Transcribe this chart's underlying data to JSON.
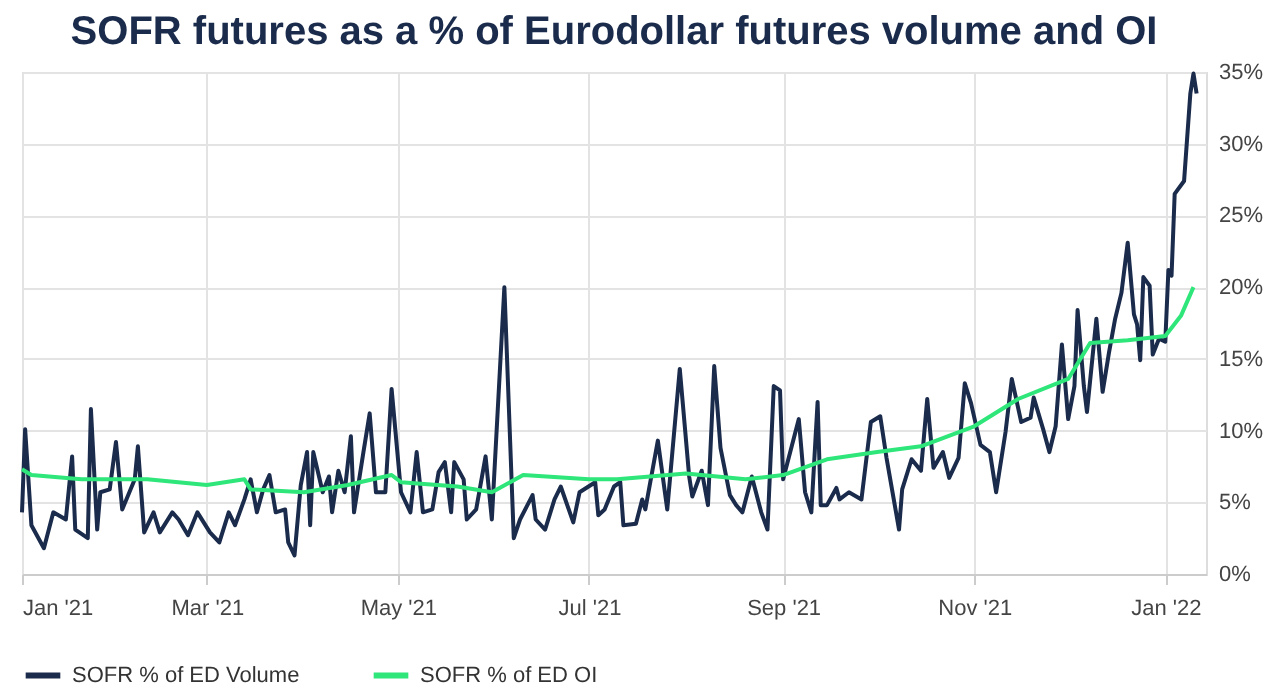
{
  "chart_data": {
    "type": "line",
    "title": "SOFR futures as a % of Eurodollar futures volume and OI",
    "xlim": [
      "2021-01-01",
      "2022-01-14"
    ],
    "xticks": [
      {
        "value": "2021-01-01",
        "label": "Jan '21"
      },
      {
        "value": "2021-03-01",
        "label": "Mar '21"
      },
      {
        "value": "2021-05-01",
        "label": "May '21"
      },
      {
        "value": "2021-07-01",
        "label": "Jul '21"
      },
      {
        "value": "2021-09-01",
        "label": "Sep '21"
      },
      {
        "value": "2021-11-01",
        "label": "Nov '21"
      },
      {
        "value": "2022-01-01",
        "label": "Jan '22"
      }
    ],
    "ylim": [
      0,
      35
    ],
    "yticks": [
      {
        "value": 0,
        "label": "0%"
      },
      {
        "value": 5,
        "label": "5%"
      },
      {
        "value": 10,
        "label": "10%"
      },
      {
        "value": 15,
        "label": "15%"
      },
      {
        "value": 20,
        "label": "20%"
      },
      {
        "value": 25,
        "label": "25%"
      },
      {
        "value": 30,
        "label": "30%"
      },
      {
        "value": 35,
        "label": "35%"
      }
    ],
    "grid": true,
    "legend": "bottom",
    "marker": "none",
    "line_style": "solid",
    "series": [
      {
        "name": "SOFR % of ED Volume",
        "color": "#1a2b4c",
        "x": [
          "2021-01-01",
          "2021-01-02",
          "2021-01-04",
          "2021-01-08",
          "2021-01-11",
          "2021-01-15",
          "2021-01-17",
          "2021-01-18",
          "2021-01-22",
          "2021-01-23",
          "2021-01-25",
          "2021-01-26",
          "2021-01-29",
          "2021-01-31",
          "2021-02-02",
          "2021-02-06",
          "2021-02-07",
          "2021-02-09",
          "2021-02-12",
          "2021-02-14",
          "2021-02-18",
          "2021-02-20",
          "2021-02-23",
          "2021-02-26",
          "2021-03-02",
          "2021-03-05",
          "2021-03-08",
          "2021-03-10",
          "2021-03-13",
          "2021-03-15",
          "2021-03-17",
          "2021-03-19",
          "2021-03-21",
          "2021-03-23",
          "2021-03-26",
          "2021-03-27",
          "2021-03-29",
          "2021-03-31",
          "2021-04-02",
          "2021-04-03",
          "2021-04-04",
          "2021-04-07",
          "2021-04-09",
          "2021-04-10",
          "2021-04-12",
          "2021-04-14",
          "2021-04-16",
          "2021-04-17",
          "2021-04-20",
          "2021-04-22",
          "2021-04-24",
          "2021-04-27",
          "2021-04-29",
          "2021-05-02",
          "2021-05-05",
          "2021-05-07",
          "2021-05-09",
          "2021-05-12",
          "2021-05-14",
          "2021-05-16",
          "2021-05-18",
          "2021-05-19",
          "2021-05-22",
          "2021-05-23",
          "2021-05-26",
          "2021-05-29",
          "2021-05-31",
          "2021-06-04",
          "2021-06-07",
          "2021-06-09",
          "2021-06-13",
          "2021-06-14",
          "2021-06-17",
          "2021-06-20",
          "2021-06-22",
          "2021-06-26",
          "2021-06-28",
          "2021-07-03",
          "2021-07-04",
          "2021-07-06",
          "2021-07-09",
          "2021-07-11",
          "2021-07-12",
          "2021-07-16",
          "2021-07-18",
          "2021-07-19",
          "2021-07-23",
          "2021-07-26",
          "2021-07-30",
          "2021-08-02",
          "2021-08-03",
          "2021-08-06",
          "2021-08-08",
          "2021-08-10",
          "2021-08-12",
          "2021-08-15",
          "2021-08-17",
          "2021-08-19",
          "2021-08-22",
          "2021-08-25",
          "2021-08-27",
          "2021-08-29",
          "2021-08-31",
          "2021-09-01",
          "2021-09-06",
          "2021-09-08",
          "2021-09-10",
          "2021-09-12",
          "2021-09-13",
          "2021-09-15",
          "2021-09-18",
          "2021-09-19",
          "2021-09-22",
          "2021-09-26",
          "2021-09-29",
          "2021-10-02",
          "2021-10-04",
          "2021-10-08",
          "2021-10-09",
          "2021-10-12",
          "2021-10-15",
          "2021-10-17",
          "2021-10-19",
          "2021-10-22",
          "2021-10-24",
          "2021-10-27",
          "2021-10-29",
          "2021-10-31",
          "2021-11-03",
          "2021-11-06",
          "2021-11-08",
          "2021-11-11",
          "2021-11-13",
          "2021-11-16",
          "2021-11-19",
          "2021-11-20",
          "2021-11-23",
          "2021-11-25",
          "2021-11-27",
          "2021-11-29",
          "2021-12-01",
          "2021-12-03",
          "2021-12-04",
          "2021-12-06",
          "2021-12-07",
          "2021-12-10",
          "2021-12-12",
          "2021-12-14",
          "2021-12-16",
          "2021-12-18",
          "2021-12-20",
          "2021-12-22",
          "2021-12-23",
          "2021-12-24",
          "2021-12-25",
          "2021-12-27",
          "2021-12-28",
          "2021-12-30",
          "2022-01-01",
          "2022-01-02",
          "2022-01-03",
          "2022-01-04",
          "2022-01-07",
          "2022-01-09",
          "2022-01-10",
          "2022-01-11"
        ],
        "values": [
          4.3,
          10.1,
          3.4,
          1.8,
          4.3,
          3.8,
          8.2,
          3.1,
          2.5,
          11.5,
          3.1,
          5.7,
          5.9,
          9.2,
          4.5,
          6.6,
          8.9,
          2.9,
          4.3,
          2.9,
          4.3,
          3.8,
          2.7,
          4.3,
          2.9,
          2.2,
          4.3,
          3.4,
          5.2,
          6.6,
          4.3,
          5.9,
          6.9,
          4.3,
          4.5,
          2.2,
          1.3,
          6.2,
          8.5,
          3.4,
          8.5,
          5.7,
          6.8,
          4.3,
          7.2,
          5.7,
          9.6,
          4.3,
          8.5,
          11.2,
          5.7,
          5.7,
          12.9,
          5.7,
          4.3,
          8.5,
          4.3,
          4.5,
          7.1,
          7.8,
          4.3,
          7.8,
          6.6,
          3.8,
          4.5,
          8.2,
          3.8,
          20.0,
          2.5,
          3.8,
          5.5,
          3.8,
          3.1,
          5.2,
          6.1,
          3.6,
          5.7,
          6.4,
          4.1,
          4.5,
          6.1,
          6.4,
          3.4,
          3.5,
          5.2,
          4.5,
          9.3,
          4.5,
          14.3,
          6.8,
          5.4,
          7.2,
          4.8,
          14.5,
          8.8,
          5.5,
          4.8,
          4.3,
          6.8,
          4.3,
          3.1,
          13.1,
          12.8,
          6.6,
          10.8,
          5.7,
          4.3,
          12.0,
          4.8,
          4.8,
          6.0,
          5.2,
          5.7,
          5.2,
          10.6,
          11.0,
          8.1,
          3.1,
          5.9,
          8.0,
          7.2,
          12.2,
          7.4,
          8.5,
          6.7,
          8.1,
          13.3,
          11.9,
          9.0,
          8.5,
          5.7,
          9.9,
          13.6,
          10.6,
          10.9,
          12.3,
          10.1,
          8.5,
          10.3,
          16.0,
          10.8,
          13.1,
          18.4,
          13.1,
          11.3,
          17.8,
          12.7,
          15.4,
          17.8,
          19.6,
          23.1,
          18.1,
          17.4,
          14.9,
          20.7,
          20.1,
          15.3,
          16.4,
          16.2,
          21.2,
          20.8,
          26.5,
          27.4,
          33.5,
          34.9,
          33.5
        ]
      },
      {
        "name": "SOFR % of ED OI",
        "color": "#2ee67a",
        "x": [
          "2021-01-01",
          "2021-01-04",
          "2021-01-20",
          "2021-02-10",
          "2021-03-01",
          "2021-03-13",
          "2021-03-15",
          "2021-04-01",
          "2021-04-15",
          "2021-04-29",
          "2021-05-02",
          "2021-05-20",
          "2021-05-31",
          "2021-06-10",
          "2021-07-01",
          "2021-07-10",
          "2021-08-01",
          "2021-08-20",
          "2021-09-01",
          "2021-09-15",
          "2021-10-01",
          "2021-10-15",
          "2021-11-01",
          "2021-11-15",
          "2021-12-01",
          "2021-12-08",
          "2021-12-20",
          "2022-01-01",
          "2022-01-06",
          "2022-01-10"
        ],
        "values": [
          7.3,
          6.9,
          6.6,
          6.6,
          6.2,
          6.6,
          5.9,
          5.7,
          6.2,
          6.9,
          6.4,
          6.1,
          5.7,
          6.9,
          6.6,
          6.6,
          7.0,
          6.6,
          6.9,
          8.0,
          8.5,
          8.9,
          10.3,
          12.2,
          13.6,
          16.1,
          16.3,
          16.6,
          18.0,
          20.0
        ]
      }
    ]
  }
}
